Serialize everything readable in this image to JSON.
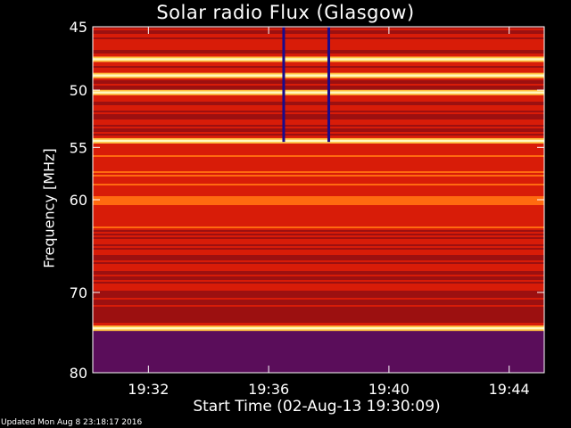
{
  "chart_data": {
    "type": "heatmap",
    "title": "Solar radio Flux (Glasgow)",
    "xlabel": "Start Time (02-Aug-13 19:30:09)",
    "ylabel": "Frequency [MHz]",
    "x_ticks": [
      "19:32",
      "19:36",
      "19:40",
      "19:44"
    ],
    "x_range": [
      "19:30:09",
      "19:45:10"
    ],
    "y_ticks": [
      45,
      50,
      55,
      60,
      70,
      80
    ],
    "ylim": [
      45,
      80
    ],
    "y_scale": "log",
    "y_direction": "increasing-downward",
    "colormap": [
      "#1a0a8c",
      "#5a0d5a",
      "#9c1010",
      "#d81c08",
      "#ff6a10",
      "#ffc040",
      "#fff8c0"
    ],
    "bright_bands_mhz": [
      47.5,
      48.8,
      50.2,
      54.4,
      74.3
    ],
    "bursts": [
      {
        "time": "19:36:30",
        "freq_range_mhz": [
          45,
          54.5
        ]
      },
      {
        "time": "19:38:00",
        "freq_range_mhz": [
          45,
          54.5
        ]
      }
    ],
    "grid": false
  },
  "footer": {
    "updated": "Updated Mon Aug  8 23:18:17 2016"
  }
}
